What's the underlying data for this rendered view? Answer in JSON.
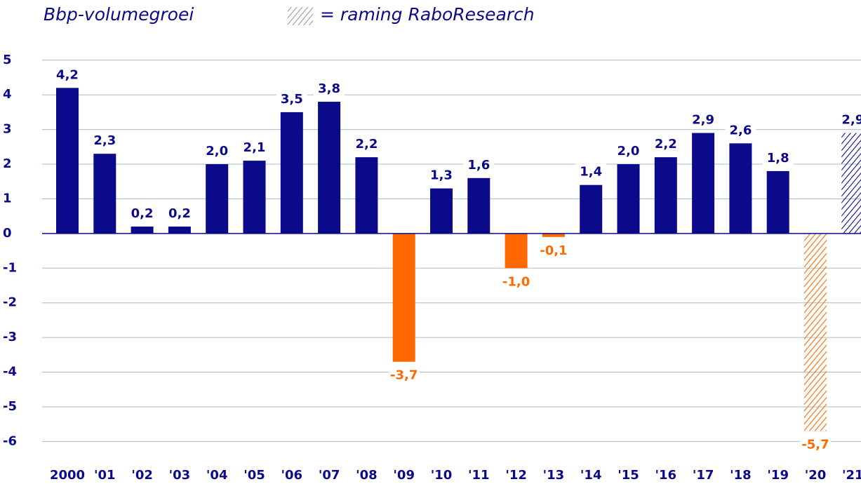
{
  "chart_data": {
    "type": "bar",
    "title": "Bbp-volumegroei",
    "legend": "= raming RaboResearch",
    "categories": [
      "2000",
      "'01",
      "'02",
      "'03",
      "'04",
      "'05",
      "'06",
      "'07",
      "'08",
      "'09",
      "'10",
      "'11",
      "'12",
      "'13",
      "'14",
      "'15",
      "'16",
      "'17",
      "'18",
      "'19",
      "'20",
      "'21"
    ],
    "values": [
      4.2,
      2.3,
      0.2,
      0.2,
      2.0,
      2.1,
      3.5,
      3.8,
      2.2,
      -3.7,
      1.3,
      1.6,
      -1.0,
      -0.1,
      1.4,
      2.0,
      2.2,
      2.9,
      2.6,
      1.8,
      -5.7,
      2.9
    ],
    "value_labels": [
      "4,2",
      "2,3",
      "0,2",
      "0,2",
      "2,0",
      "2,1",
      "3,5",
      "3,8",
      "2,2",
      "-3,7",
      "1,3",
      "1,6",
      "-1,0",
      "-0,1",
      "1,4",
      "2,0",
      "2,2",
      "2,9",
      "2,6",
      "1,8",
      "-5,7",
      "2,9"
    ],
    "hatched": [
      false,
      false,
      false,
      false,
      false,
      false,
      false,
      false,
      false,
      false,
      false,
      false,
      false,
      false,
      false,
      false,
      false,
      false,
      false,
      false,
      true,
      true
    ],
    "color_positive": "#0a0a8a",
    "color_negative": "#ff6a00",
    "ylim": [
      -6.7,
      5.4
    ],
    "yticks": [
      5,
      4,
      3,
      2,
      1,
      0,
      -1,
      -2,
      -3,
      -4,
      -5,
      -6
    ],
    "grid": true
  }
}
